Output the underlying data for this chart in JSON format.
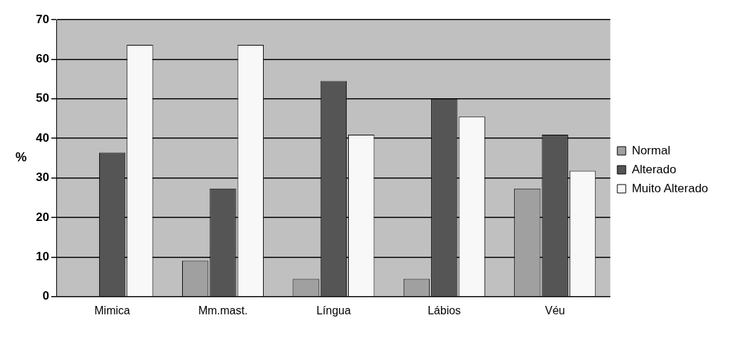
{
  "chart_data": {
    "type": "bar",
    "ylabel": "%",
    "categories": [
      "Mimica",
      "Mm.mast.",
      "Língua",
      "Lábios",
      "Véu"
    ],
    "series": [
      {
        "name": "Normal",
        "color": "#a0a0a0",
        "values": [
          0,
          9.1,
          4.5,
          4.5,
          27.3
        ]
      },
      {
        "name": "Alterado",
        "color": "#555555",
        "values": [
          36.4,
          27.3,
          54.5,
          50,
          40.9
        ]
      },
      {
        "name": "Muito Alterado",
        "color": "#f8f8f8",
        "values": [
          63.6,
          63.6,
          40.9,
          45.5,
          31.8
        ]
      }
    ],
    "ylim": [
      0,
      70
    ],
    "yticks": [
      0,
      10,
      20,
      30,
      40,
      50,
      60,
      70
    ],
    "grid": "y",
    "legend": "right"
  }
}
